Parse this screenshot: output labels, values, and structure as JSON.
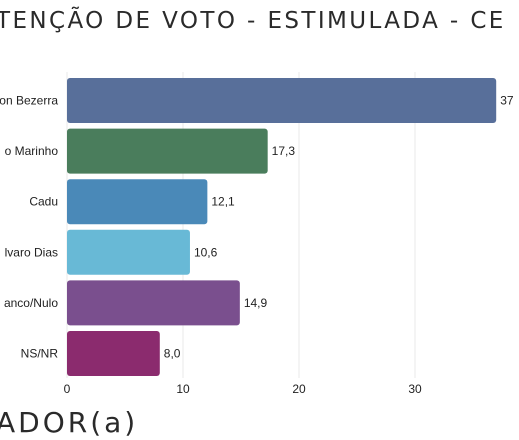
{
  "header": {
    "title": "TENÇÃO DE VOTO - ESTIMULADA - CE",
    "section": "ADOR(a)"
  },
  "chart_data": {
    "type": "bar",
    "orientation": "horizontal",
    "categories": [
      "on Bezerra",
      "o Marinho",
      "Cadu",
      "lvaro Dias",
      "anco/Nulo",
      "NS/NR"
    ],
    "values": [
      37.0,
      17.3,
      12.1,
      10.6,
      14.9,
      8.0
    ],
    "value_labels": [
      "37",
      "17,3",
      "12,1",
      "10,6",
      "14,9",
      "8,0"
    ],
    "colors": [
      "#586f9a",
      "#4a7d5c",
      "#4a89b8",
      "#68b9d6",
      "#7a4f8e",
      "#8b2b6e"
    ],
    "xticks": [
      0,
      10,
      20,
      30
    ],
    "xlim": [
      0,
      37
    ],
    "grid": true
  }
}
